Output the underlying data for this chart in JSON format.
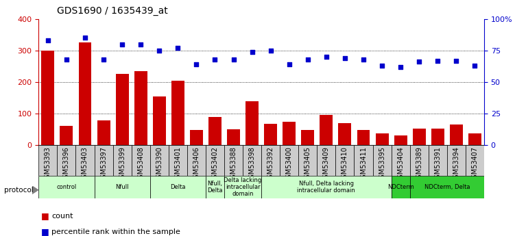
{
  "title": "GDS1690 / 1635439_at",
  "samples": [
    "GSM53393",
    "GSM53396",
    "GSM53403",
    "GSM53397",
    "GSM53399",
    "GSM53408",
    "GSM53390",
    "GSM53401",
    "GSM53406",
    "GSM53402",
    "GSM53388",
    "GSM53398",
    "GSM53392",
    "GSM53400",
    "GSM53405",
    "GSM53409",
    "GSM53410",
    "GSM53411",
    "GSM53395",
    "GSM53404",
    "GSM53389",
    "GSM53391",
    "GSM53394",
    "GSM53407"
  ],
  "counts": [
    300,
    62,
    325,
    78,
    225,
    235,
    155,
    205,
    47,
    90,
    50,
    140,
    68,
    75,
    47,
    96,
    70,
    47,
    38,
    30,
    52,
    52,
    65,
    38
  ],
  "percentiles": [
    83,
    68,
    85,
    68,
    80,
    80,
    75,
    77,
    64,
    68,
    68,
    74,
    75,
    64,
    68,
    70,
    69,
    68,
    63,
    62,
    66,
    67,
    67,
    63
  ],
  "ylim_left": [
    0,
    400
  ],
  "ylim_right": [
    0,
    100
  ],
  "yticks_left": [
    0,
    100,
    200,
    300,
    400
  ],
  "yticks_right": [
    0,
    25,
    50,
    75,
    100
  ],
  "yticklabels_right": [
    "0",
    "25",
    "50",
    "75",
    "100%"
  ],
  "bar_color": "#cc0000",
  "dot_color": "#0000cc",
  "groups": [
    {
      "label": "control",
      "start": 0,
      "end": 2,
      "color": "#ccffcc"
    },
    {
      "label": "Nfull",
      "start": 3,
      "end": 5,
      "color": "#ccffcc"
    },
    {
      "label": "Delta",
      "start": 6,
      "end": 8,
      "color": "#ccffcc"
    },
    {
      "label": "Nfull,\nDelta",
      "start": 9,
      "end": 9,
      "color": "#ccffcc"
    },
    {
      "label": "Delta lacking\nintracellular\ndomain",
      "start": 10,
      "end": 11,
      "color": "#ccffcc"
    },
    {
      "label": "Nfull, Delta lacking\nintracellular domain",
      "start": 12,
      "end": 18,
      "color": "#ccffcc"
    },
    {
      "label": "NDCterm",
      "start": 19,
      "end": 19,
      "color": "#33cc33"
    },
    {
      "label": "NDCterm, Delta",
      "start": 20,
      "end": 23,
      "color": "#33cc33"
    }
  ],
  "tick_label_size": 7,
  "title_fontsize": 10,
  "xtick_bg": "#cccccc"
}
